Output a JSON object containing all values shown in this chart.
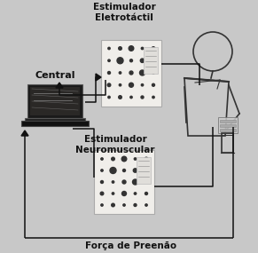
{
  "bg_color": "#c8c8c8",
  "title_electrotactil": "Estimulador\nEletrotáctil",
  "title_neuromuscular": "Estimulador\nNeuromuscular",
  "label_central": "Central",
  "label_forca": "Força de Preenão",
  "arrow_color": "#111111",
  "text_color": "#111111",
  "box_fill": "#f0eeea",
  "box_border": "#aaaaaa",
  "laptop_body": "#151515",
  "laptop_screen": "#252525"
}
